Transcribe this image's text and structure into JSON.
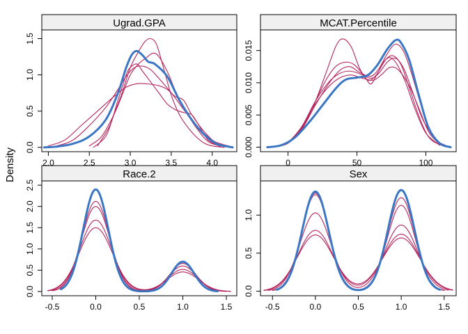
{
  "figure": {
    "ylabel": "Density"
  },
  "colors": {
    "observed": "#3a76c4",
    "imputed": "#b5245c",
    "strip": "#f0f0f0"
  },
  "chart_data": [
    {
      "type": "line",
      "title": "Ugrad.GPA",
      "xlim": [
        1.92,
        4.3
      ],
      "ylim": [
        -0.06,
        1.62
      ],
      "xticks": [
        2.0,
        2.5,
        3.0,
        3.5,
        4.0
      ],
      "xtick_labels": [
        "2.0",
        "2.5",
        "3.0",
        "3.5",
        "4.0"
      ],
      "yticks": [
        0.0,
        0.5,
        1.0,
        1.5
      ],
      "ytick_labels": [
        "0.0",
        "0.5",
        "1.0",
        "1.5"
      ],
      "series": [
        {
          "role": "observed",
          "x": [
            1.95,
            2.1,
            2.3,
            2.5,
            2.7,
            2.85,
            2.95,
            3.02,
            3.08,
            3.15,
            3.22,
            3.3,
            3.45,
            3.6,
            3.75,
            3.9,
            4.05,
            4.15,
            4.25
          ],
          "y": [
            0.0,
            0.01,
            0.05,
            0.15,
            0.38,
            0.75,
            1.1,
            1.28,
            1.33,
            1.27,
            1.18,
            1.15,
            0.98,
            0.65,
            0.38,
            0.18,
            0.05,
            0.02,
            0.0
          ]
        },
        {
          "role": "imputed",
          "x": [
            1.95,
            2.1,
            2.3,
            2.5,
            2.7,
            2.85,
            2.95,
            3.05,
            3.15,
            3.25,
            3.35,
            3.45,
            3.55,
            3.7,
            3.85,
            4.0,
            4.1,
            4.2
          ],
          "y": [
            0.0,
            0.02,
            0.1,
            0.3,
            0.55,
            0.8,
            0.98,
            1.1,
            1.12,
            1.07,
            0.95,
            0.82,
            0.68,
            0.45,
            0.25,
            0.1,
            0.05,
            0.02
          ]
        },
        {
          "role": "imputed",
          "x": [
            2.0,
            2.2,
            2.4,
            2.6,
            2.8,
            2.95,
            3.1,
            3.25,
            3.35,
            3.45,
            3.55,
            3.65,
            3.75,
            3.9,
            4.05,
            4.2
          ],
          "y": [
            0.02,
            0.1,
            0.3,
            0.5,
            0.7,
            0.83,
            0.88,
            0.87,
            0.85,
            0.8,
            0.7,
            0.65,
            0.45,
            0.22,
            0.06,
            0.01
          ]
        },
        {
          "role": "imputed",
          "x": [
            2.55,
            2.7,
            2.8,
            2.9,
            3.0,
            3.1,
            3.18,
            3.25,
            3.32,
            3.4,
            3.5,
            3.6,
            3.7,
            3.8,
            3.9,
            4.0,
            4.15
          ],
          "y": [
            0.0,
            0.15,
            0.45,
            0.75,
            1.1,
            1.32,
            1.46,
            1.5,
            1.42,
            1.12,
            0.72,
            0.45,
            0.28,
            0.15,
            0.06,
            0.02,
            0.0
          ]
        },
        {
          "role": "imputed",
          "x": [
            2.5,
            2.65,
            2.8,
            2.9,
            3.0,
            3.1,
            3.2,
            3.28,
            3.35,
            3.45,
            3.55,
            3.65,
            3.8,
            3.95,
            4.1
          ],
          "y": [
            0.02,
            0.15,
            0.45,
            0.72,
            1.0,
            1.15,
            1.24,
            1.3,
            1.25,
            1.05,
            0.78,
            0.55,
            0.28,
            0.08,
            0.02
          ]
        },
        {
          "role": "imputed",
          "x": [
            2.6,
            2.75,
            2.85,
            2.95,
            3.0,
            3.08,
            3.15,
            3.25,
            3.35,
            3.45,
            3.55,
            3.65,
            3.75,
            3.85,
            3.95,
            4.1
          ],
          "y": [
            0.02,
            0.3,
            0.65,
            1.0,
            1.1,
            1.15,
            1.05,
            0.9,
            0.75,
            0.6,
            0.52,
            0.48,
            0.45,
            0.28,
            0.1,
            0.01
          ]
        }
      ]
    },
    {
      "type": "line",
      "title": "MCAT.Percentile",
      "xlim": [
        -20,
        122
      ],
      "ylim": [
        -0.0007,
        0.0182
      ],
      "xticks": [
        0,
        50,
        100
      ],
      "xtick_labels": [
        "0",
        "50",
        "100"
      ],
      "yticks": [
        0.0,
        0.005,
        0.01,
        0.015
      ],
      "ytick_labels": [
        "0.000",
        "0.005",
        "0.010",
        "0.015"
      ],
      "series": [
        {
          "role": "observed",
          "x": [
            -15,
            -5,
            5,
            15,
            25,
            35,
            42,
            50,
            58,
            65,
            72,
            78,
            82,
            88,
            95,
            102,
            110,
            118
          ],
          "y": [
            0.0,
            0.0003,
            0.0015,
            0.0038,
            0.0065,
            0.0092,
            0.0105,
            0.0108,
            0.0112,
            0.0128,
            0.0152,
            0.0166,
            0.0162,
            0.0135,
            0.008,
            0.003,
            0.0006,
            0.0
          ]
        },
        {
          "role": "imputed",
          "x": [
            -10,
            0,
            10,
            20,
            28,
            35,
            40,
            46,
            52,
            58,
            64,
            70,
            76,
            82,
            88,
            95,
            102,
            110,
            118
          ],
          "y": [
            0.0,
            0.0006,
            0.0028,
            0.0072,
            0.0118,
            0.0158,
            0.0168,
            0.0155,
            0.0122,
            0.0104,
            0.0112,
            0.0134,
            0.0142,
            0.0128,
            0.0092,
            0.0048,
            0.0016,
            0.0004,
            0.0
          ]
        },
        {
          "role": "imputed",
          "x": [
            -10,
            0,
            10,
            20,
            28,
            35,
            42,
            48,
            55,
            60,
            65,
            72,
            78,
            85,
            92,
            100,
            110
          ],
          "y": [
            0.0,
            0.0008,
            0.003,
            0.0072,
            0.0106,
            0.0126,
            0.0132,
            0.0128,
            0.0112,
            0.0098,
            0.0115,
            0.0138,
            0.0132,
            0.0102,
            0.006,
            0.0022,
            0.0003
          ]
        },
        {
          "role": "imputed",
          "x": [
            -10,
            0,
            10,
            20,
            30,
            38,
            45,
            52,
            60,
            66,
            72,
            78,
            84,
            90,
            98,
            108
          ],
          "y": [
            0.0,
            0.0008,
            0.0032,
            0.0072,
            0.0102,
            0.0115,
            0.0118,
            0.0114,
            0.0107,
            0.0115,
            0.0132,
            0.0138,
            0.0122,
            0.0088,
            0.0042,
            0.0008
          ]
        },
        {
          "role": "imputed",
          "x": [
            -10,
            0,
            10,
            20,
            30,
            38,
            46,
            54,
            62,
            68,
            74,
            80,
            88,
            95,
            102,
            110
          ],
          "y": [
            0.0,
            0.0008,
            0.0032,
            0.0068,
            0.0095,
            0.0108,
            0.0112,
            0.0107,
            0.0104,
            0.0113,
            0.0124,
            0.012,
            0.0095,
            0.006,
            0.0024,
            0.0004
          ]
        },
        {
          "role": "imputed",
          "x": [
            -10,
            0,
            10,
            20,
            30,
            38,
            45,
            52,
            60,
            66,
            72,
            78,
            84,
            90,
            98,
            106,
            115
          ],
          "y": [
            0.0,
            0.0007,
            0.0028,
            0.0066,
            0.01,
            0.012,
            0.0125,
            0.0116,
            0.011,
            0.0122,
            0.0145,
            0.016,
            0.0148,
            0.0112,
            0.0055,
            0.0015,
            0.0002
          ]
        }
      ]
    },
    {
      "type": "line",
      "title": "Race.2",
      "xlim": [
        -0.62,
        1.62
      ],
      "ylim": [
        -0.1,
        2.6
      ],
      "xticks": [
        -0.5,
        0.0,
        0.5,
        1.0,
        1.5
      ],
      "xtick_labels": [
        "-0.5",
        "0.0",
        "0.5",
        "1.0",
        "1.5"
      ],
      "yticks": [
        0.0,
        0.5,
        1.0,
        1.5,
        2.0,
        2.5
      ],
      "ytick_labels": [
        "0.0",
        "0.5",
        "1.0",
        "1.5",
        "2.0",
        "2.5"
      ],
      "series": [
        {
          "role": "observed",
          "mix": [
            [
              0,
              2.4,
              0.145
            ],
            [
              1,
              0.7,
              0.13
            ]
          ],
          "range": [
            -0.4,
            1.4
          ]
        },
        {
          "role": "imputed",
          "mix": [
            [
              0,
              2.12,
              0.16
            ],
            [
              1,
              0.66,
              0.15
            ]
          ],
          "range": [
            -0.5,
            1.5
          ]
        },
        {
          "role": "imputed",
          "mix": [
            [
              0,
              2.0,
              0.165
            ],
            [
              1,
              0.6,
              0.16
            ]
          ],
          "range": [
            -0.5,
            1.5
          ]
        },
        {
          "role": "imputed",
          "mix": [
            [
              0,
              1.68,
              0.18
            ],
            [
              1,
              0.52,
              0.17
            ]
          ],
          "range": [
            -0.55,
            1.55
          ]
        },
        {
          "role": "imputed",
          "mix": [
            [
              0,
              1.5,
              0.19
            ],
            [
              1,
              0.46,
              0.18
            ]
          ],
          "range": [
            -0.55,
            1.55
          ]
        }
      ]
    },
    {
      "type": "line",
      "title": "Sex",
      "xlim": [
        -0.64,
        1.64
      ],
      "ylim": [
        -0.06,
        1.45
      ],
      "xticks": [
        -0.5,
        0.0,
        0.5,
        1.0,
        1.5
      ],
      "xtick_labels": [
        "-0.5",
        "0.0",
        "0.5",
        "1.0",
        "1.5"
      ],
      "yticks": [
        0.0,
        0.5,
        1.0
      ],
      "ytick_labels": [
        "0.0",
        "0.5",
        "1.0"
      ],
      "series": [
        {
          "role": "observed",
          "mix": [
            [
              0,
              1.31,
              0.155
            ],
            [
              1,
              1.33,
              0.155
            ]
          ],
          "range": [
            -0.45,
            1.45
          ]
        },
        {
          "role": "imputed",
          "mix": [
            [
              0,
              1.29,
              0.16
            ],
            [
              1,
              1.23,
              0.16
            ]
          ],
          "range": [
            -0.5,
            1.5
          ]
        },
        {
          "role": "imputed",
          "mix": [
            [
              0,
              1.27,
              0.16
            ],
            [
              1,
              1.13,
              0.165
            ]
          ],
          "range": [
            -0.5,
            1.5
          ]
        },
        {
          "role": "imputed",
          "mix": [
            [
              0,
              1.03,
              0.18
            ],
            [
              1,
              0.87,
              0.19
            ]
          ],
          "range": [
            -0.55,
            1.55
          ]
        },
        {
          "role": "imputed",
          "mix": [
            [
              0,
              0.8,
              0.2
            ],
            [
              1,
              0.75,
              0.21
            ]
          ],
          "range": [
            -0.6,
            1.6
          ]
        },
        {
          "role": "imputed",
          "mix": [
            [
              0,
              0.74,
              0.21
            ],
            [
              1,
              0.7,
              0.22
            ]
          ],
          "range": [
            -0.6,
            1.6
          ]
        }
      ]
    }
  ]
}
